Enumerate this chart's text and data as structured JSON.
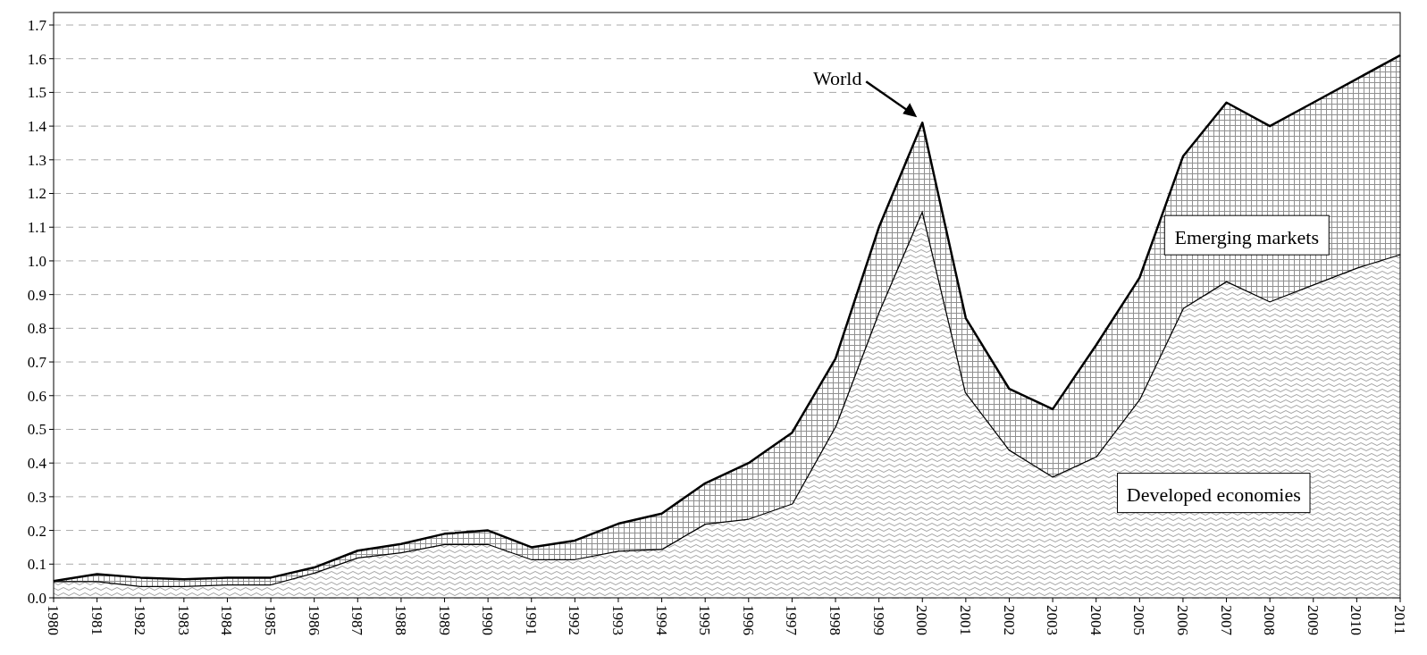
{
  "chart_data": {
    "type": "area",
    "stacked": true,
    "grid": "y",
    "categories": [
      "1980",
      "1981",
      "1982",
      "1983",
      "1984",
      "1985",
      "1986",
      "1987",
      "1988",
      "1989",
      "1990",
      "1991",
      "1992",
      "1993",
      "1994",
      "1995",
      "1996",
      "1997",
      "1998",
      "1999",
      "2000",
      "2001",
      "2002",
      "2003",
      "2004",
      "2005",
      "2006",
      "2007",
      "2008",
      "2009",
      "2010",
      "2011"
    ],
    "series": [
      {
        "name": "Developed economies",
        "color": "#a0a0a0",
        "values": [
          0.05,
          0.05,
          0.035,
          0.035,
          0.04,
          0.04,
          0.075,
          0.12,
          0.135,
          0.16,
          0.16,
          0.115,
          0.115,
          0.14,
          0.145,
          0.22,
          0.235,
          0.28,
          0.51,
          0.85,
          1.15,
          0.61,
          0.44,
          0.36,
          0.42,
          0.59,
          0.86,
          0.94,
          0.88,
          0.93,
          0.98,
          1.02
        ]
      },
      {
        "name": "Emerging markets",
        "color": "#909090",
        "values": [
          0,
          0.02,
          0.025,
          0.02,
          0.02,
          0.02,
          0.015,
          0.02,
          0.025,
          0.03,
          0.04,
          0.035,
          0.055,
          0.08,
          0.105,
          0.12,
          0.165,
          0.21,
          0.2,
          0.25,
          0.26,
          0.22,
          0.18,
          0.2,
          0.33,
          0.36,
          0.45,
          0.53,
          0.52,
          0.54,
          0.56,
          0.59
        ]
      }
    ],
    "ylim": [
      0,
      1.7
    ],
    "yticks": [
      {
        "value": 0,
        "label": "0.0"
      },
      {
        "value": 0.1,
        "label": "0.1"
      },
      {
        "value": 0.2,
        "label": "0.2"
      },
      {
        "value": 0.3,
        "label": "0.3"
      },
      {
        "value": 0.4,
        "label": "0.4"
      },
      {
        "value": 0.5,
        "label": "0.5"
      },
      {
        "value": 0.6,
        "label": "0.6"
      },
      {
        "value": 0.7,
        "label": "0.7"
      },
      {
        "value": 0.8,
        "label": "0.8"
      },
      {
        "value": 0.9,
        "label": "0.9"
      },
      {
        "value": 1.0,
        "label": "1.0"
      },
      {
        "value": 1.1,
        "label": "1.1"
      },
      {
        "value": 1.2,
        "label": "1.2"
      },
      {
        "value": 1.3,
        "label": "1.3"
      },
      {
        "value": 1.4,
        "label": "1.4"
      },
      {
        "value": 1.5,
        "label": "1.5"
      },
      {
        "value": 1.6,
        "label": "1.6"
      },
      {
        "value": 1.7,
        "label": "1.7"
      }
    ],
    "annotations": [
      "World"
    ]
  }
}
